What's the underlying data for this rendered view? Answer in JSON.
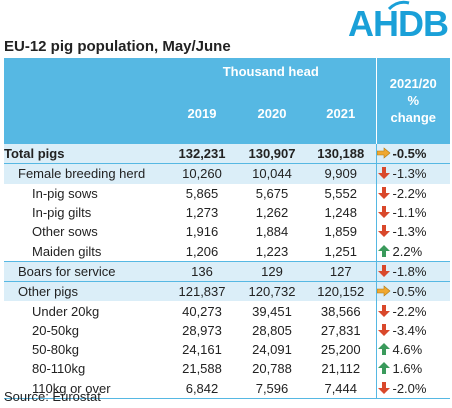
{
  "logo": {
    "text": "AHDB"
  },
  "title": "EU-12 pig population, May/June",
  "header": {
    "group_label": "Thousand head",
    "years": [
      "2019",
      "2020",
      "2021"
    ],
    "change_label_line1": "2021/20",
    "change_label_line2": "%",
    "change_label_line3": "change"
  },
  "rows": [
    {
      "label": "Total pigs",
      "v2019": "132,231",
      "v2020": "130,907",
      "v2021": "130,188",
      "change": "-0.5%",
      "trend": "flat",
      "level": 0,
      "bold": true,
      "shaded": true
    },
    {
      "label": "Female breeding herd",
      "v2019": "10,260",
      "v2020": "10,044",
      "v2021": "9,909",
      "change": "-1.3%",
      "trend": "down",
      "level": 1,
      "bold": false,
      "shaded": true
    },
    {
      "label": "In-pig sows",
      "v2019": "5,865",
      "v2020": "5,675",
      "v2021": "5,552",
      "change": "-2.2%",
      "trend": "down",
      "level": 2,
      "bold": false,
      "shaded": false
    },
    {
      "label": "In-pig gilts",
      "v2019": "1,273",
      "v2020": "1,262",
      "v2021": "1,248",
      "change": "-1.1%",
      "trend": "down",
      "level": 2,
      "bold": false,
      "shaded": false
    },
    {
      "label": "Other sows",
      "v2019": "1,916",
      "v2020": "1,884",
      "v2021": "1,859",
      "change": "-1.3%",
      "trend": "down",
      "level": 2,
      "bold": false,
      "shaded": false
    },
    {
      "label": "Maiden gilts",
      "v2019": "1,206",
      "v2020": "1,223",
      "v2021": "1,251",
      "change": "2.2%",
      "trend": "up",
      "level": 2,
      "bold": false,
      "shaded": false
    },
    {
      "label": "Boars for service",
      "v2019": "136",
      "v2020": "129",
      "v2021": "127",
      "change": "-1.8%",
      "trend": "down",
      "level": 1,
      "bold": false,
      "shaded": true
    },
    {
      "label": "Other pigs",
      "v2019": "121,837",
      "v2020": "120,732",
      "v2021": "120,152",
      "change": "-0.5%",
      "trend": "flat",
      "level": 1,
      "bold": false,
      "shaded": true
    },
    {
      "label": "Under 20kg",
      "v2019": "40,273",
      "v2020": "39,451",
      "v2021": "38,566",
      "change": "-2.2%",
      "trend": "down",
      "level": 2,
      "bold": false,
      "shaded": false
    },
    {
      "label": "20-50kg",
      "v2019": "28,973",
      "v2020": "28,805",
      "v2021": "27,831",
      "change": "-3.4%",
      "trend": "down",
      "level": 2,
      "bold": false,
      "shaded": false
    },
    {
      "label": "50-80kg",
      "v2019": "24,161",
      "v2020": "24,091",
      "v2021": "25,200",
      "change": "4.6%",
      "trend": "up",
      "level": 2,
      "bold": false,
      "shaded": false
    },
    {
      "label": "80-110kg",
      "v2019": "21,588",
      "v2020": "20,788",
      "v2021": "21,112",
      "change": "1.6%",
      "trend": "up",
      "level": 2,
      "bold": false,
      "shaded": false
    },
    {
      "label": "110kg or over",
      "v2019": "6,842",
      "v2020": "7,596",
      "v2021": "7,444",
      "change": "-2.0%",
      "trend": "down",
      "level": 2,
      "bold": false,
      "shaded": false
    }
  ],
  "trend_colors": {
    "up": "#3a9a5b",
    "down": "#d9482b",
    "flat": "#f0a830"
  },
  "source": "Source: Eurostat"
}
